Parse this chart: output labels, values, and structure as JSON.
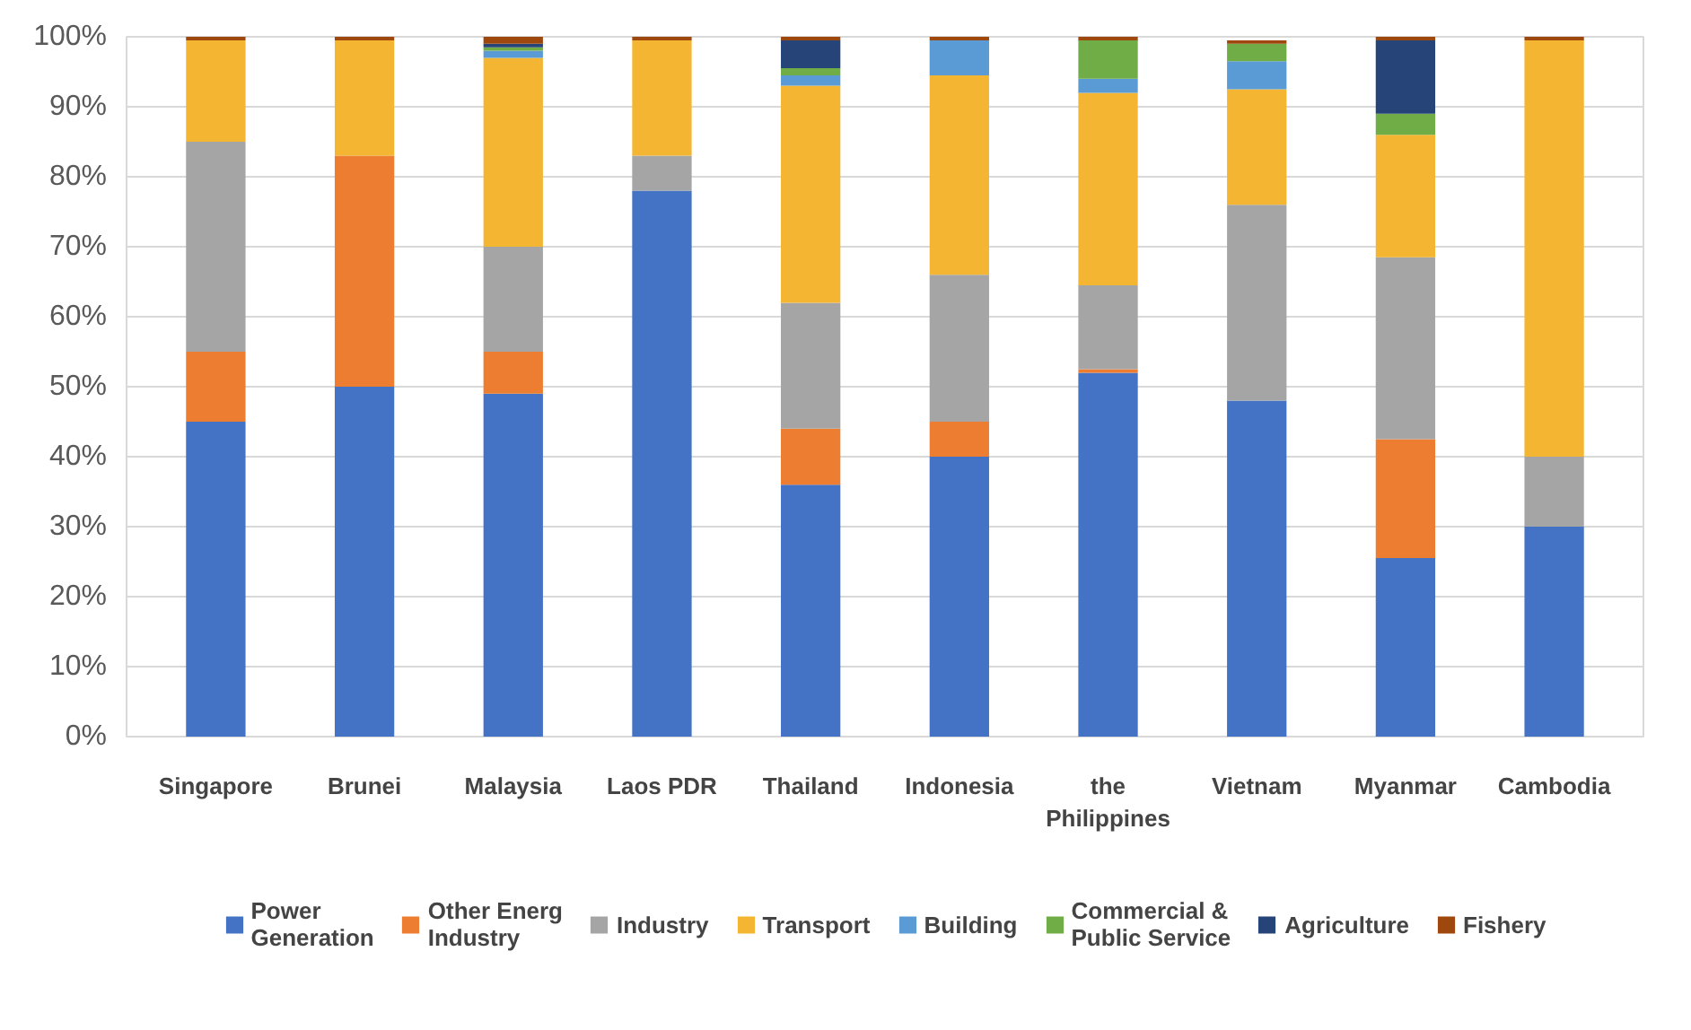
{
  "chart_data": {
    "type": "bar",
    "stacked": true,
    "categories": [
      "Singapore",
      "Brunei",
      "Malaysia",
      "Laos PDR",
      "Thailand",
      "Indonesia",
      "the\nPhilippines",
      "Vietnam",
      "Myanmar",
      "Cambodia"
    ],
    "series": [
      {
        "name": "Power\nGeneration",
        "color": "#4472c4",
        "values": [
          45,
          50,
          49,
          78,
          36,
          40,
          52,
          48,
          25.5,
          30
        ]
      },
      {
        "name": "Other Energ\nIndustry",
        "color": "#ed7d31",
        "values": [
          10,
          33,
          6,
          0,
          8,
          5,
          0.5,
          0,
          17,
          0
        ]
      },
      {
        "name": "Industry",
        "color": "#a5a5a5",
        "values": [
          30,
          0,
          15,
          5,
          18,
          21,
          12,
          28,
          26,
          10
        ]
      },
      {
        "name": "Transport",
        "color": "#f4b532",
        "values": [
          14.5,
          16.5,
          27,
          16.5,
          31,
          28.5,
          27.5,
          16.5,
          17.5,
          59.5
        ]
      },
      {
        "name": "Building",
        "color": "#5b9bd5",
        "values": [
          0,
          0,
          1,
          0,
          1.5,
          5,
          2,
          4,
          0,
          0
        ]
      },
      {
        "name": "Commercial &\nPublic Service",
        "color": "#70ad47",
        "values": [
          0,
          0,
          0.5,
          0,
          1,
          0,
          5.5,
          2.5,
          3,
          0
        ]
      },
      {
        "name": "Agriculture",
        "color": "#264478",
        "values": [
          0,
          0,
          0.5,
          0,
          4,
          0,
          0,
          0,
          10.5,
          0
        ]
      },
      {
        "name": "Fishery",
        "color": "#9e480e",
        "values": [
          0.5,
          0.5,
          1,
          0.5,
          0.5,
          0.5,
          0.5,
          0.5,
          0.5,
          0.5
        ]
      }
    ],
    "ylim": [
      0,
      100
    ],
    "yticks": [
      {
        "value": 0,
        "label": "0%"
      },
      {
        "value": 10,
        "label": "10%"
      },
      {
        "value": 20,
        "label": "20%"
      },
      {
        "value": 30,
        "label": "30%"
      },
      {
        "value": 40,
        "label": "40%"
      },
      {
        "value": 50,
        "label": "50%"
      },
      {
        "value": 60,
        "label": "60%"
      },
      {
        "value": 70,
        "label": "70%"
      },
      {
        "value": 80,
        "label": "80%"
      },
      {
        "value": 90,
        "label": "90%"
      },
      {
        "value": 100,
        "label": "100%"
      }
    ],
    "grid": "y",
    "legend": "bottom"
  }
}
